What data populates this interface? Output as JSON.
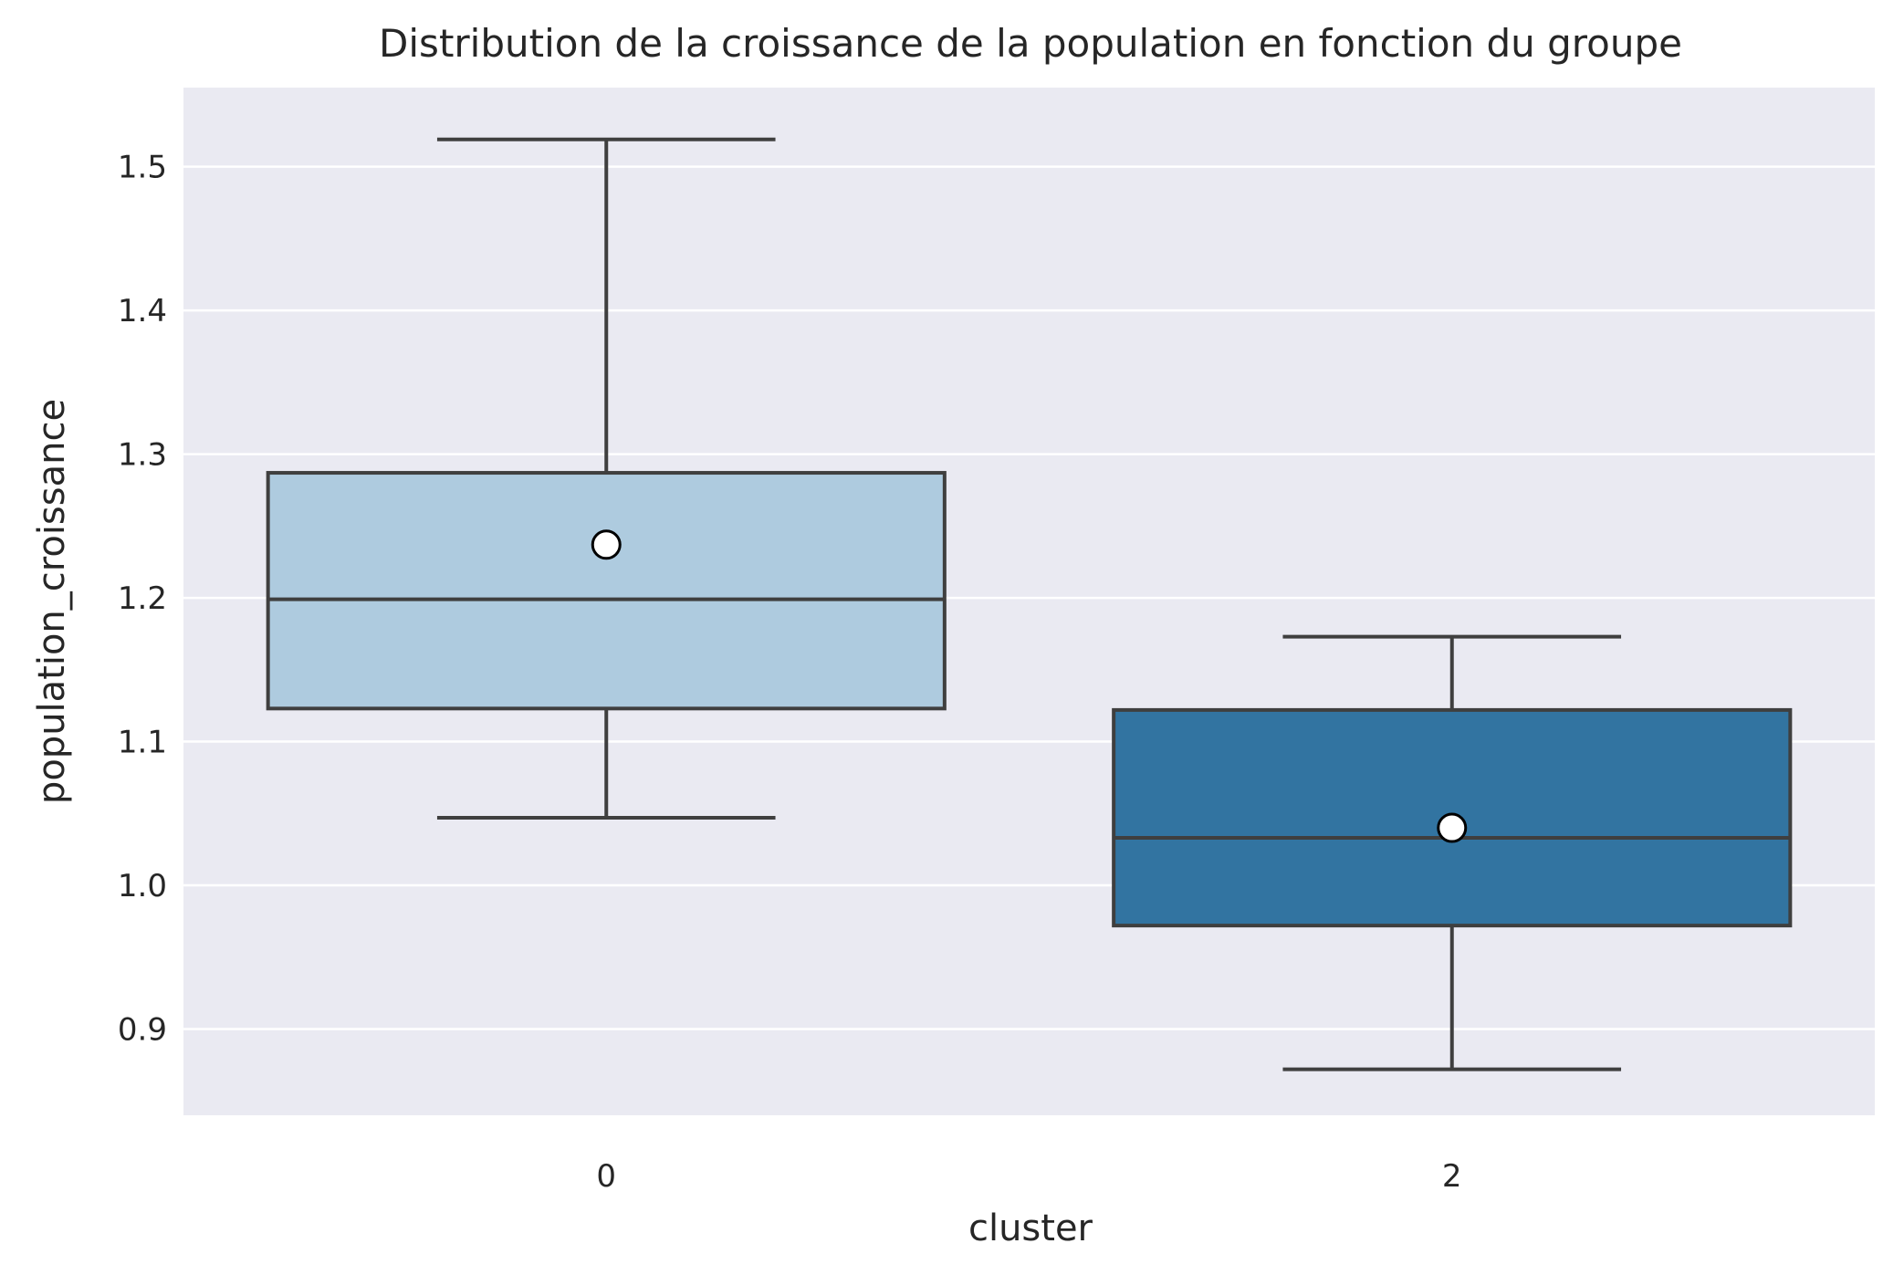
{
  "chart_data": {
    "type": "box",
    "title": "Distribution de la croissance de la population en fonction du groupe",
    "xlabel": "cluster",
    "ylabel": "population_croissance",
    "categories": [
      "0",
      "2"
    ],
    "ylim": [
      0.84,
      1.555
    ],
    "yticks": [
      "0.9",
      "1.0",
      "1.1",
      "1.2",
      "1.3",
      "1.4",
      "1.5"
    ],
    "boxes": [
      {
        "category": "0",
        "whisker_low": 1.047,
        "q1": 1.123,
        "median": 1.199,
        "q3": 1.287,
        "whisker_high": 1.519,
        "mean": 1.237,
        "color": "#aecbdf"
      },
      {
        "category": "2",
        "whisker_low": 0.872,
        "q1": 0.972,
        "median": 1.033,
        "q3": 1.122,
        "whisker_high": 1.173,
        "mean": 1.04,
        "color": "#3274a1"
      }
    ],
    "background": "#eaeaf2",
    "grid": true,
    "line_color": "#3f3f3f"
  }
}
